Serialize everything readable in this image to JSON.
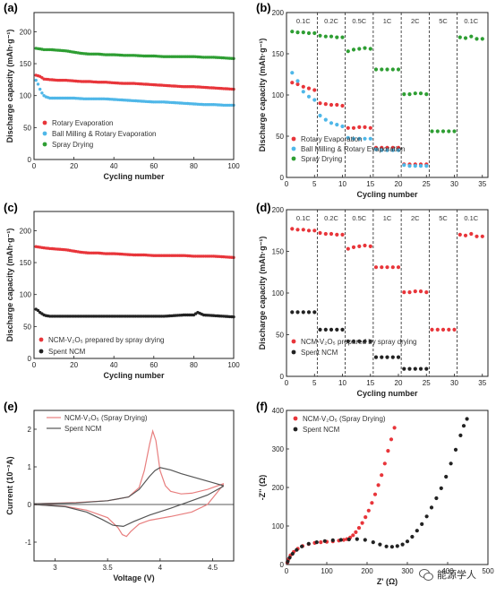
{
  "watermark": {
    "text": "能源学人"
  },
  "colors": {
    "red": "#e8353a",
    "blue": "#4fb7e8",
    "green": "#2e9e33",
    "black": "#222222",
    "cvRed": "#e87f7f",
    "cvGray": "#555555"
  },
  "chart_data": [
    {
      "id": "a",
      "panel_label": "(a)",
      "type": "scatter",
      "xlabel": "Cycling number",
      "ylabel": "Discharge capacity (mAh·g⁻¹)",
      "xlim": [
        0,
        100
      ],
      "ylim": [
        0,
        230
      ],
      "xticks": [
        0,
        20,
        40,
        60,
        80,
        100
      ],
      "yticks": [
        0,
        50,
        100,
        150,
        200
      ],
      "legend_position": "bottom-left",
      "series": [
        {
          "name": "Rotary Evaporation",
          "color": "#e8353a",
          "x": [
            1,
            3,
            5,
            8,
            12,
            16,
            20,
            24,
            28,
            32,
            36,
            40,
            45,
            50,
            55,
            60,
            65,
            70,
            75,
            80,
            85,
            90,
            95,
            100
          ],
          "y": [
            132,
            130,
            126,
            125,
            124,
            124,
            123,
            122,
            122,
            121,
            121,
            120,
            119,
            119,
            118,
            117,
            116,
            115,
            114,
            114,
            113,
            112,
            111,
            110
          ]
        },
        {
          "name": "Ball Milling & Rotary Evaporation",
          "color": "#4fb7e8",
          "x": [
            1,
            2,
            3,
            4,
            5,
            6,
            7,
            8,
            10,
            12,
            15,
            20,
            25,
            30,
            35,
            40,
            45,
            50,
            55,
            60,
            65,
            70,
            75,
            80,
            85,
            90,
            95,
            100
          ],
          "y": [
            124,
            118,
            110,
            104,
            100,
            98,
            97,
            96,
            96,
            96,
            96,
            96,
            95,
            95,
            95,
            94,
            93,
            92,
            91,
            90,
            90,
            89,
            88,
            87,
            86,
            86,
            85,
            85
          ]
        },
        {
          "name": "Spray Drying",
          "color": "#2e9e33",
          "x": [
            1,
            3,
            5,
            8,
            12,
            16,
            20,
            24,
            28,
            32,
            36,
            40,
            45,
            50,
            55,
            60,
            65,
            70,
            75,
            80,
            85,
            90,
            95,
            100
          ],
          "y": [
            174,
            173,
            172,
            172,
            171,
            170,
            168,
            166,
            165,
            165,
            164,
            164,
            163,
            163,
            162,
            162,
            161,
            161,
            161,
            161,
            160,
            160,
            159,
            158
          ]
        }
      ]
    },
    {
      "id": "b",
      "panel_label": "(b)",
      "type": "scatter",
      "xlabel": "Cycling number",
      "ylabel": "Discharge capacity (mAh·g⁻¹)",
      "xlim": [
        0,
        36
      ],
      "ylim": [
        0,
        200
      ],
      "xticks": [
        0,
        5,
        10,
        15,
        20,
        25,
        30,
        35
      ],
      "yticks": [
        0,
        50,
        100,
        150,
        200
      ],
      "rate_boundaries": [
        5.5,
        10.5,
        15.5,
        20.5,
        25.5,
        30.5
      ],
      "rate_labels": [
        {
          "text": "0.1C",
          "x": 3
        },
        {
          "text": "0.2C",
          "x": 8
        },
        {
          "text": "0.5C",
          "x": 13
        },
        {
          "text": "1C",
          "x": 18
        },
        {
          "text": "2C",
          "x": 23
        },
        {
          "text": "5C",
          "x": 28
        },
        {
          "text": "0.1C",
          "x": 33
        }
      ],
      "legend_position": "bottom-left",
      "series": [
        {
          "name": "Rotary Evaporation",
          "color": "#e8353a",
          "x": [
            1,
            2,
            3,
            4,
            5,
            6,
            7,
            8,
            9,
            10,
            11,
            12,
            13,
            14,
            15,
            16,
            17,
            18,
            19,
            20,
            21,
            22,
            23,
            24,
            25
          ],
          "y": [
            115,
            113,
            110,
            108,
            106,
            90,
            89,
            88,
            88,
            87,
            60,
            60,
            61,
            61,
            60,
            36,
            36,
            36,
            36,
            36,
            16,
            16,
            16,
            16,
            16
          ]
        },
        {
          "name": "Ball Milling & Rotary Evaporation",
          "color": "#4fb7e8",
          "x": [
            1,
            2,
            3,
            4,
            5,
            6,
            7,
            8,
            9,
            10,
            11,
            12,
            13,
            14,
            15,
            16,
            17,
            18,
            19,
            20,
            21,
            22,
            23,
            24,
            25
          ],
          "y": [
            127,
            117,
            104,
            98,
            94,
            75,
            70,
            66,
            64,
            62,
            48,
            47,
            47,
            47,
            47,
            34,
            33,
            33,
            33,
            33,
            15,
            14,
            14,
            14,
            14
          ]
        },
        {
          "name": "Spray Drying",
          "color": "#2e9e33",
          "x": [
            1,
            2,
            3,
            4,
            5,
            6,
            7,
            8,
            9,
            10,
            11,
            12,
            13,
            14,
            15,
            16,
            17,
            18,
            19,
            20,
            21,
            22,
            23,
            24,
            25,
            26,
            27,
            28,
            29,
            30,
            31,
            32,
            33,
            34,
            35
          ],
          "y": [
            177,
            176,
            176,
            175,
            175,
            172,
            171,
            171,
            170,
            170,
            153,
            155,
            156,
            157,
            156,
            131,
            131,
            131,
            131,
            131,
            101,
            101,
            102,
            102,
            101,
            56,
            56,
            56,
            56,
            56,
            170,
            169,
            171,
            168,
            168
          ]
        }
      ]
    },
    {
      "id": "c",
      "panel_label": "(c)",
      "type": "scatter",
      "xlabel": "Cycling number",
      "ylabel": "Discharge capacity (mAh·g⁻¹)",
      "xlim": [
        0,
        100
      ],
      "ylim": [
        0,
        230
      ],
      "xticks": [
        0,
        20,
        40,
        60,
        80,
        100
      ],
      "yticks": [
        0,
        50,
        100,
        150,
        200
      ],
      "legend_position": "bottom-left",
      "series": [
        {
          "name": "NCM-V₂O₅ prepared by spray drying",
          "color": "#e8353a",
          "x": [
            1,
            3,
            5,
            8,
            12,
            16,
            20,
            24,
            28,
            32,
            36,
            40,
            45,
            50,
            55,
            60,
            65,
            70,
            75,
            80,
            85,
            90,
            95,
            100
          ],
          "y": [
            175,
            174,
            173,
            172,
            171,
            170,
            168,
            166,
            165,
            165,
            164,
            164,
            163,
            162,
            162,
            161,
            161,
            161,
            161,
            160,
            160,
            160,
            159,
            158
          ]
        },
        {
          "name": "Spent NCM",
          "color": "#222222",
          "x": [
            1,
            2,
            3,
            4,
            5,
            6,
            8,
            10,
            15,
            20,
            25,
            30,
            35,
            40,
            45,
            50,
            55,
            60,
            65,
            70,
            75,
            80,
            82,
            85,
            90,
            95,
            100
          ],
          "y": [
            77,
            75,
            72,
            70,
            68,
            67,
            66,
            66,
            66,
            66,
            66,
            66,
            66,
            66,
            66,
            66,
            66,
            66,
            66,
            67,
            68,
            68,
            72,
            68,
            67,
            66,
            65
          ]
        }
      ]
    },
    {
      "id": "d",
      "panel_label": "(d)",
      "type": "scatter",
      "xlabel": "Cycling number",
      "ylabel": "Discharge capacity (mAh·g⁻¹)",
      "xlim": [
        0,
        36
      ],
      "ylim": [
        0,
        200
      ],
      "xticks": [
        0,
        5,
        10,
        15,
        20,
        25,
        30,
        35
      ],
      "yticks": [
        0,
        50,
        100,
        150,
        200
      ],
      "rate_boundaries": [
        5.5,
        10.5,
        15.5,
        20.5,
        25.5,
        30.5
      ],
      "rate_labels": [
        {
          "text": "0.1C",
          "x": 3
        },
        {
          "text": "0.2C",
          "x": 8
        },
        {
          "text": "0.5C",
          "x": 13
        },
        {
          "text": "1C",
          "x": 18
        },
        {
          "text": "2C",
          "x": 23
        },
        {
          "text": "5C",
          "x": 28
        },
        {
          "text": "0.1C",
          "x": 33
        }
      ],
      "legend_position": "bottom-left",
      "series": [
        {
          "name": "NCM-V₂O₅ prepared by spray drying",
          "color": "#e8353a",
          "x": [
            1,
            2,
            3,
            4,
            5,
            6,
            7,
            8,
            9,
            10,
            11,
            12,
            13,
            14,
            15,
            16,
            17,
            18,
            19,
            20,
            21,
            22,
            23,
            24,
            25,
            26,
            27,
            28,
            29,
            30,
            31,
            32,
            33,
            34,
            35
          ],
          "y": [
            177,
            176,
            176,
            175,
            175,
            172,
            171,
            171,
            170,
            170,
            153,
            155,
            156,
            157,
            156,
            131,
            131,
            131,
            131,
            131,
            101,
            101,
            102,
            102,
            101,
            56,
            56,
            56,
            56,
            56,
            170,
            169,
            171,
            168,
            168
          ]
        },
        {
          "name": "Spent NCM",
          "color": "#222222",
          "x": [
            1,
            2,
            3,
            4,
            5,
            6,
            7,
            8,
            9,
            10,
            11,
            12,
            13,
            14,
            15,
            16,
            17,
            18,
            19,
            20,
            21,
            22,
            23,
            24,
            25
          ],
          "y": [
            77,
            77,
            77,
            77,
            77,
            56,
            56,
            56,
            56,
            56,
            42,
            42,
            42,
            42,
            42,
            23,
            23,
            23,
            23,
            23,
            9,
            9,
            9,
            9,
            9
          ]
        }
      ]
    },
    {
      "id": "e",
      "panel_label": "(e)",
      "type": "line",
      "xlabel": "Voltage (V)",
      "ylabel": "Current (10⁻³A)",
      "xlim": [
        2.8,
        4.7
      ],
      "ylim": [
        -1.5,
        2.5
      ],
      "xticks": [
        3.0,
        3.5,
        4.0,
        4.5
      ],
      "yticks": [
        -1,
        0,
        1,
        2
      ],
      "zero_line": true,
      "legend_position": "top-left",
      "series": [
        {
          "name": "NCM-V₂O₅ (Spray Drying)",
          "color": "#e87f7f",
          "x": [
            2.8,
            3.2,
            3.5,
            3.7,
            3.8,
            3.85,
            3.9,
            3.93,
            3.96,
            4.0,
            4.05,
            4.1,
            4.2,
            4.3,
            4.45,
            4.6,
            4.6,
            4.45,
            4.3,
            4.1,
            3.9,
            3.8,
            3.72,
            3.68,
            3.64,
            3.6,
            3.5,
            3.3,
            3.1,
            2.8
          ],
          "y": [
            0.02,
            0.05,
            0.1,
            0.2,
            0.45,
            0.9,
            1.6,
            1.95,
            1.7,
            0.9,
            0.5,
            0.35,
            0.28,
            0.3,
            0.4,
            0.55,
            0.52,
            0.0,
            -0.2,
            -0.32,
            -0.42,
            -0.52,
            -0.72,
            -0.85,
            -0.8,
            -0.62,
            -0.35,
            -0.15,
            -0.05,
            0.0
          ]
        },
        {
          "name": "Spent NCM",
          "color": "#555555",
          "x": [
            2.8,
            3.2,
            3.5,
            3.7,
            3.8,
            3.9,
            3.95,
            4.0,
            4.1,
            4.2,
            4.35,
            4.5,
            4.6,
            4.6,
            4.45,
            4.3,
            4.1,
            3.9,
            3.75,
            3.65,
            3.55,
            3.45,
            3.3,
            3.1,
            2.8
          ],
          "y": [
            0.02,
            0.04,
            0.1,
            0.2,
            0.4,
            0.75,
            0.9,
            0.98,
            0.92,
            0.82,
            0.7,
            0.58,
            0.5,
            0.48,
            0.25,
            0.1,
            -0.1,
            -0.28,
            -0.45,
            -0.58,
            -0.55,
            -0.4,
            -0.2,
            -0.06,
            0.0
          ]
        }
      ]
    },
    {
      "id": "f",
      "panel_label": "(f)",
      "type": "scatter",
      "xlabel": "Z' (Ω)",
      "ylabel": "-Z'' (Ω)",
      "xlim": [
        0,
        500
      ],
      "ylim": [
        0,
        400
      ],
      "xticks": [
        0,
        100,
        200,
        300,
        400,
        500
      ],
      "yticks": [
        0,
        100,
        200,
        300,
        400
      ],
      "legend_position": "top-left",
      "series": [
        {
          "name": "NCM-V₂O₅ (Spray Drying)",
          "color": "#e8353a",
          "x": [
            2,
            5,
            10,
            18,
            28,
            40,
            55,
            70,
            85,
            100,
            115,
            130,
            142,
            150,
            158,
            165,
            172,
            180,
            188,
            196,
            204,
            212,
            220,
            228,
            236,
            244,
            252,
            260,
            268
          ],
          "y": [
            5,
            14,
            24,
            33,
            41,
            48,
            53,
            56,
            58,
            59,
            60,
            62,
            64,
            66,
            70,
            76,
            84,
            95,
            108,
            123,
            140,
            160,
            182,
            206,
            232,
            262,
            295,
            325,
            355
          ]
        },
        {
          "name": "Spent NCM",
          "color": "#222222",
          "x": [
            3,
            8,
            15,
            25,
            38,
            55,
            75,
            95,
            115,
            135,
            155,
            175,
            195,
            215,
            232,
            248,
            262,
            275,
            288,
            300,
            312,
            324,
            336,
            348,
            360,
            372,
            384,
            396,
            408,
            420,
            432,
            440,
            448
          ],
          "y": [
            8,
            18,
            28,
            38,
            47,
            54,
            58,
            61,
            63,
            64,
            65,
            66,
            64,
            58,
            52,
            47,
            46,
            48,
            52,
            60,
            72,
            88,
            105,
            125,
            148,
            172,
            198,
            228,
            262,
            298,
            335,
            360,
            378
          ]
        }
      ]
    }
  ]
}
